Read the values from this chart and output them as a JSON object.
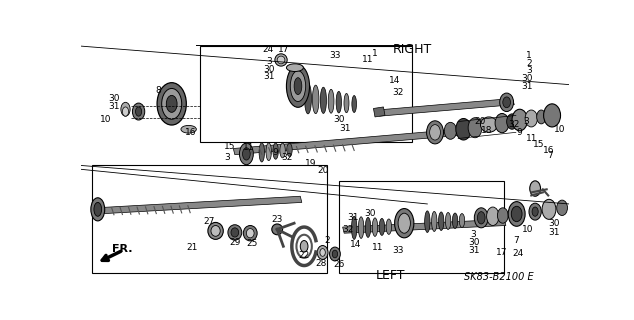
{
  "bg_color": "#ffffff",
  "fig_width": 6.34,
  "fig_height": 3.2,
  "dpi": 100,
  "label_RIGHT": "RIGHT",
  "label_LEFT": "LEFT",
  "label_FR": "FR.",
  "part_number": "SK83-B2100 E",
  "text_color": "#000000",
  "line_color": "#000000",
  "component_dark": "#444444",
  "component_mid": "#777777",
  "component_light": "#aaaaaa",
  "component_pale": "#cccccc"
}
